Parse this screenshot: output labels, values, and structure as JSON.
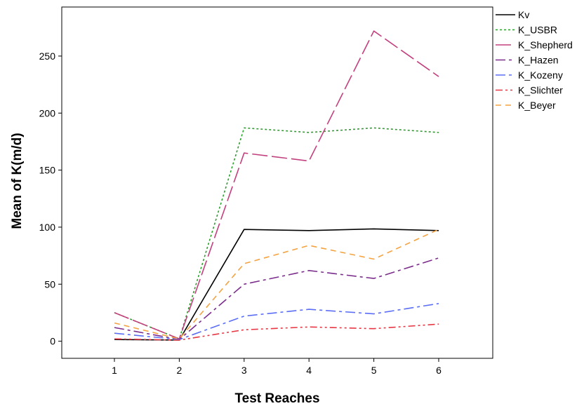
{
  "chart_data": {
    "type": "line",
    "title": "",
    "xlabel": "Test Reaches",
    "ylabel": "Mean of K(m/d)",
    "categories": [
      "1",
      "2",
      "3",
      "4",
      "5",
      "6"
    ],
    "yticks": [
      "0",
      "50",
      "100",
      "150",
      "200",
      "250"
    ],
    "ylim": [
      -15,
      293
    ],
    "grid": false,
    "legend_position": "right",
    "series": [
      {
        "name": "Kv",
        "color": "#000000",
        "dash": "solid",
        "values": [
          1.5,
          1,
          98,
          97,
          98.5,
          97
        ]
      },
      {
        "name": "K_USBR",
        "color": "#2ca02c",
        "dash": "dotted",
        "values": [
          25,
          2,
          187,
          183,
          187,
          183
        ]
      },
      {
        "name": "K_Shepherd",
        "color": "#c2407e",
        "dash": "longdash",
        "values": [
          25,
          2,
          165,
          158,
          272,
          232
        ]
      },
      {
        "name": "K_Hazen",
        "color": "#7b2d8b",
        "dash": "dashdot",
        "values": [
          12,
          1.5,
          50,
          62,
          55,
          73
        ]
      },
      {
        "name": "K_Kozeny",
        "color": "#5b6ef5",
        "dash": "dashdot",
        "values": [
          7,
          1.5,
          22,
          28,
          24,
          33
        ]
      },
      {
        "name": "K_Slichter",
        "color": "#e63946",
        "dash": "dashdotdot",
        "values": [
          2,
          1,
          10,
          12.5,
          11,
          15
        ]
      },
      {
        "name": "K_Beyer",
        "color": "#f4a340",
        "dash": "dashed",
        "values": [
          16,
          2,
          68,
          84,
          72,
          98
        ]
      }
    ]
  }
}
